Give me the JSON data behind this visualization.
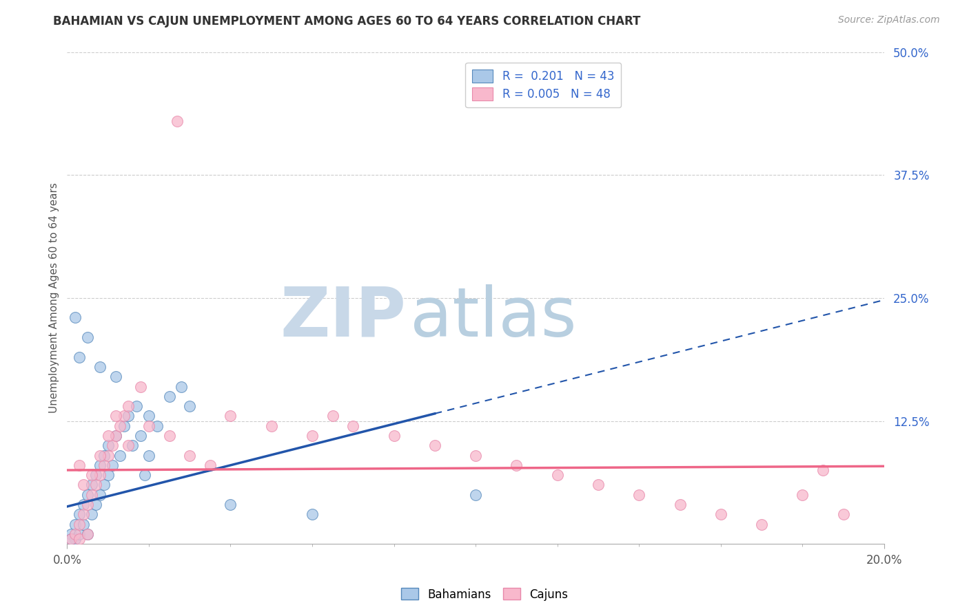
{
  "title": "BAHAMIAN VS CAJUN UNEMPLOYMENT AMONG AGES 60 TO 64 YEARS CORRELATION CHART",
  "source_text": "Source: ZipAtlas.com",
  "ylabel": "Unemployment Among Ages 60 to 64 years",
  "xlim": [
    0.0,
    0.2
  ],
  "ylim": [
    0.0,
    0.5
  ],
  "ytick_labels_right": [
    "12.5%",
    "25.0%",
    "37.5%",
    "50.0%"
  ],
  "ytick_positions_right": [
    0.125,
    0.25,
    0.375,
    0.5
  ],
  "grid_color": "#cccccc",
  "background_color": "#ffffff",
  "watermark_zip": "ZIP",
  "watermark_atlas": "atlas",
  "watermark_color_zip": "#c8d8e8",
  "watermark_color_atlas": "#b8cfe0",
  "legend_r1": "R =  0.201",
  "legend_n1": "N = 43",
  "legend_r2": "R = 0.005",
  "legend_n2": "N = 48",
  "blue_fill": "#aac8e8",
  "blue_edge": "#5588bb",
  "pink_fill": "#f8b8cc",
  "pink_edge": "#e888aa",
  "trend_blue": "#2255aa",
  "trend_pink": "#ee6688",
  "trend_blue_intercept": 0.038,
  "trend_blue_slope": 1.05,
  "trend_blue_solid_end": 0.09,
  "trend_pink_intercept": 0.075,
  "trend_pink_slope": 0.02,
  "bahamian_x": [
    0.001,
    0.002,
    0.002,
    0.003,
    0.003,
    0.004,
    0.004,
    0.005,
    0.005,
    0.006,
    0.006,
    0.007,
    0.007,
    0.008,
    0.008,
    0.009,
    0.009,
    0.01,
    0.01,
    0.011,
    0.012,
    0.013,
    0.014,
    0.015,
    0.016,
    0.017,
    0.018,
    0.019,
    0.02,
    0.022,
    0.025,
    0.028,
    0.03,
    0.002,
    0.003,
    0.005,
    0.008,
    0.012,
    0.02,
    0.06,
    0.1,
    0.04,
    0.001
  ],
  "bahamian_y": [
    0.01,
    0.02,
    0.005,
    0.03,
    0.01,
    0.04,
    0.02,
    0.05,
    0.01,
    0.06,
    0.03,
    0.07,
    0.04,
    0.08,
    0.05,
    0.09,
    0.06,
    0.1,
    0.07,
    0.08,
    0.11,
    0.09,
    0.12,
    0.13,
    0.1,
    0.14,
    0.11,
    0.07,
    0.09,
    0.12,
    0.15,
    0.16,
    0.14,
    0.23,
    0.19,
    0.21,
    0.18,
    0.17,
    0.13,
    0.03,
    0.05,
    0.04,
    0.005
  ],
  "cajun_x": [
    0.001,
    0.002,
    0.003,
    0.003,
    0.004,
    0.005,
    0.005,
    0.006,
    0.007,
    0.008,
    0.009,
    0.01,
    0.011,
    0.012,
    0.013,
    0.014,
    0.015,
    0.02,
    0.025,
    0.03,
    0.035,
    0.04,
    0.05,
    0.06,
    0.065,
    0.07,
    0.08,
    0.09,
    0.1,
    0.11,
    0.12,
    0.13,
    0.14,
    0.15,
    0.16,
    0.17,
    0.18,
    0.19,
    0.003,
    0.004,
    0.006,
    0.008,
    0.01,
    0.012,
    0.015,
    0.018,
    0.185,
    0.027
  ],
  "cajun_y": [
    0.005,
    0.01,
    0.02,
    0.005,
    0.03,
    0.04,
    0.01,
    0.05,
    0.06,
    0.07,
    0.08,
    0.09,
    0.1,
    0.11,
    0.12,
    0.13,
    0.1,
    0.12,
    0.11,
    0.09,
    0.08,
    0.13,
    0.12,
    0.11,
    0.13,
    0.12,
    0.11,
    0.1,
    0.09,
    0.08,
    0.07,
    0.06,
    0.05,
    0.04,
    0.03,
    0.02,
    0.05,
    0.03,
    0.08,
    0.06,
    0.07,
    0.09,
    0.11,
    0.13,
    0.14,
    0.16,
    0.075,
    0.43
  ],
  "figsize": [
    14.06,
    8.92
  ],
  "dpi": 100
}
